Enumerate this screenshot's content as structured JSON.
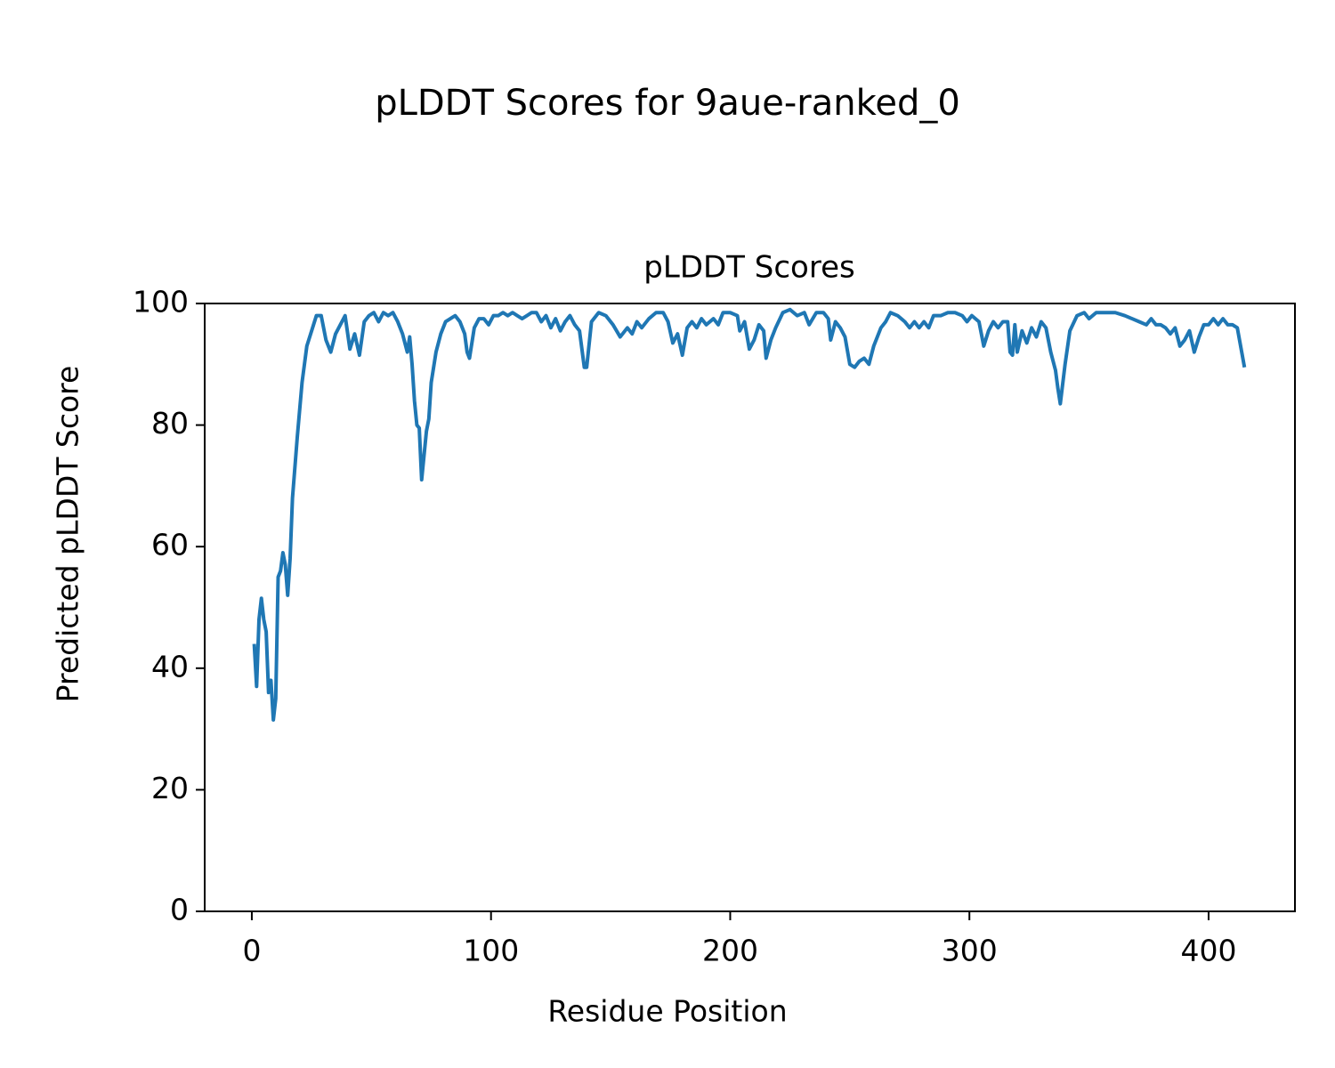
{
  "chart_data": {
    "type": "line",
    "suptitle": "pLDDT Scores for 9aue-ranked_0",
    "title": "pLDDT Scores",
    "xlabel": "Residue Position",
    "ylabel": "Predicted pLDDT Score",
    "xlim": [
      -19.7,
      436.1
    ],
    "ylim": [
      0,
      100
    ],
    "xticks": [
      0,
      100,
      200,
      300,
      400
    ],
    "yticks": [
      0,
      20,
      40,
      60,
      80,
      100
    ],
    "grid": false,
    "x": [
      1,
      2,
      3,
      4,
      5,
      6,
      7,
      8,
      9,
      10,
      11,
      12,
      13,
      14,
      15,
      16,
      17,
      19,
      21,
      23,
      25,
      27,
      29,
      31,
      33,
      35,
      37,
      39,
      41,
      43,
      45,
      47,
      49,
      51,
      53,
      55,
      57,
      59,
      61,
      63,
      65,
      66,
      67,
      68,
      69,
      70,
      71,
      73,
      74,
      75,
      77,
      79,
      81,
      83,
      85,
      87,
      89,
      90,
      91,
      93,
      95,
      97,
      99,
      101,
      103,
      105,
      107,
      109,
      111,
      113,
      115,
      117,
      119,
      121,
      123,
      125,
      127,
      129,
      131,
      133,
      135,
      137,
      139,
      140,
      142,
      145,
      148,
      151,
      154,
      157,
      159,
      161,
      163,
      166,
      169,
      172,
      174,
      176,
      178,
      180,
      182,
      184,
      186,
      188,
      190,
      193,
      195,
      197,
      200,
      203,
      204,
      206,
      208,
      210,
      212,
      214,
      215,
      217,
      219,
      222,
      225,
      228,
      231,
      233,
      236,
      239,
      241,
      242,
      244,
      246,
      248,
      250,
      252,
      254,
      256,
      258,
      260,
      263,
      265,
      267,
      270,
      273,
      275,
      277,
      279,
      281,
      283,
      285,
      288,
      291,
      294,
      297,
      299,
      301,
      304,
      306,
      308,
      310,
      312,
      314,
      316,
      317,
      318,
      319,
      320,
      322,
      324,
      326,
      328,
      330,
      332,
      334,
      336,
      337,
      338,
      340,
      342,
      345,
      348,
      350,
      353,
      357,
      361,
      365,
      368,
      371,
      374,
      376,
      378,
      380,
      382,
      384,
      386,
      388,
      390,
      392,
      394,
      396,
      398,
      400,
      402,
      404,
      406,
      408,
      410,
      412,
      415
    ],
    "series": [
      {
        "name": "pLDDT",
        "color": "#1f77b4",
        "values": [
          44,
          37,
          48,
          51.5,
          48,
          46,
          36,
          38,
          31.5,
          35,
          55,
          56,
          59,
          57,
          52,
          58,
          68,
          78,
          87,
          93,
          95.5,
          98,
          98,
          94,
          92,
          95,
          96.5,
          98,
          92.5,
          95,
          91.5,
          97,
          98,
          98.5,
          97,
          98.5,
          98,
          98.5,
          97,
          95,
          92,
          94.5,
          90,
          84,
          80,
          79.5,
          71,
          79,
          81,
          87,
          92,
          95,
          97,
          97.5,
          98,
          97,
          95,
          92,
          91,
          96,
          97.5,
          97.5,
          96.5,
          98,
          98,
          98.5,
          98,
          98.5,
          98,
          97.5,
          98,
          98.5,
          98.5,
          97,
          98,
          96,
          97.5,
          95.5,
          97,
          98,
          96.5,
          95.5,
          89.5,
          89.5,
          97,
          98.5,
          98,
          96.5,
          94.5,
          96,
          95,
          97,
          96,
          97.5,
          98.5,
          98.5,
          97,
          93.5,
          95,
          91.5,
          96,
          97,
          96,
          97.5,
          96.5,
          97.5,
          96.5,
          98.5,
          98.5,
          98,
          95.5,
          97,
          92.5,
          94,
          96.5,
          95.5,
          91,
          94,
          96,
          98.5,
          99,
          98,
          98.5,
          96.5,
          98.5,
          98.5,
          97.5,
          94,
          97,
          96,
          94.5,
          90,
          89.5,
          90.5,
          91,
          90,
          93,
          96,
          97,
          98.5,
          98,
          97,
          96,
          97,
          96,
          97,
          96,
          98,
          98,
          98.5,
          98.5,
          98,
          97,
          98,
          97,
          93,
          95.5,
          97,
          96,
          97,
          97,
          92,
          91.5,
          96.5,
          92,
          95.5,
          93.5,
          96,
          94.5,
          97,
          96,
          92,
          89,
          86,
          83.5,
          90,
          95.5,
          98,
          98.5,
          97.5,
          98.5,
          98.5,
          98.5,
          98,
          97.5,
          97,
          96.5,
          97.5,
          96.5,
          96.5,
          96,
          95,
          96,
          93,
          94,
          95.5,
          92,
          94.5,
          96.5,
          96.5,
          97.5,
          96.5,
          97.5,
          96.5,
          96.5,
          96,
          89.5
        ]
      }
    ]
  }
}
